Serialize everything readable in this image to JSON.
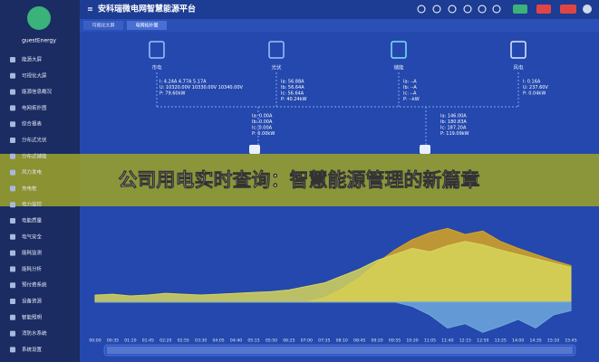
{
  "sidebar": {
    "user": "guestEnergy",
    "menu": [
      "能源大屏",
      "可视化大屏",
      "能源信息概况",
      "电网拓扑图",
      "综合报表",
      "分布式光伏",
      "分布式储能",
      "风力发电",
      "充电桩",
      "电力监控",
      "电能质量",
      "电气安全",
      "能耗监测",
      "能耗分析",
      "预付费系统",
      "设备资源",
      "智能照明",
      "消防水系统",
      "系统设置"
    ]
  },
  "header": {
    "title": "安科瑞微电网智慧能源平台"
  },
  "tabs": [
    "可视化大屏",
    "电网拓扑图"
  ],
  "topology": {
    "nodes": [
      {
        "label": "市电",
        "readings": [
          "I: 4.24A 4.77A 5.17A",
          "U: 10320.00V 10330.00V 10340.00V",
          "P: 79.60kW"
        ]
      },
      {
        "label": "光伏",
        "readings": [
          "Ia: 56.88A",
          "Ib: 56.64A",
          "Ic: 56.64A",
          "P: 40.24kW"
        ]
      },
      {
        "label": "储能",
        "readings": [
          "Ia: --A",
          "Ib: --A",
          "Ic: --A",
          "P: --kW"
        ]
      },
      {
        "label": "风电",
        "readings": [
          "I: 0.16A",
          "U: 237.60V",
          "P: 0.04kW"
        ]
      }
    ],
    "lower": [
      {
        "readings": [
          "Ia: 0.00A",
          "Ib: 0.00A",
          "Ic: 0.00A",
          "P: 0.00kW"
        ]
      },
      {
        "readings": [
          "Ia: 146.00A",
          "Ib: 180.83A",
          "Ic: 187.20A",
          "P: 119.09kW"
        ]
      }
    ]
  },
  "banner": "公司用电实时查询：智慧能源管理的新篇章",
  "chart_data": {
    "type": "area",
    "x": [
      "00:00",
      "00:35",
      "01:10",
      "01:45",
      "02:20",
      "02:55",
      "03:30",
      "04:05",
      "04:40",
      "05:15",
      "05:50",
      "06:25",
      "07:00",
      "07:35",
      "08:10",
      "08:45",
      "09:20",
      "09:55",
      "10:30",
      "11:05",
      "11:40",
      "12:15",
      "12:50",
      "13:25",
      "14:00",
      "14:35",
      "15:10",
      "15:45"
    ],
    "series": [
      {
        "color": "#d9a520",
        "values": [
          0,
          0,
          0,
          0,
          0,
          0,
          0,
          0,
          0,
          0,
          0,
          0,
          0,
          5,
          15,
          28,
          45,
          60,
          72,
          80,
          85,
          78,
          82,
          70,
          62,
          55,
          48,
          42
        ]
      },
      {
        "color": "#d6d65a",
        "values": [
          8,
          9,
          7,
          8,
          10,
          9,
          8,
          9,
          10,
          11,
          12,
          14,
          18,
          22,
          30,
          38,
          48,
          55,
          62,
          58,
          65,
          70,
          66,
          60,
          55,
          50,
          45,
          40
        ]
      },
      {
        "color": "#6fa8dc",
        "values": [
          0,
          0,
          0,
          0,
          0,
          0,
          0,
          0,
          0,
          0,
          0,
          0,
          0,
          0,
          0,
          0,
          0,
          0,
          -5,
          -15,
          -30,
          -25,
          -35,
          -28,
          -20,
          -30,
          -15,
          -10
        ]
      }
    ],
    "ylim": [
      -40,
      100
    ]
  }
}
